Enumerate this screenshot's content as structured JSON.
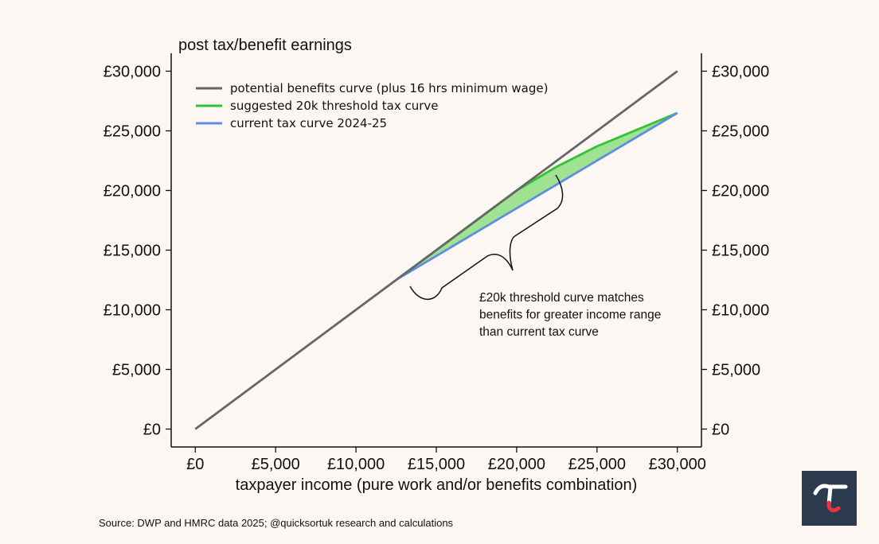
{
  "colors": {
    "background": "#fcf7f3",
    "benefits": "#666666",
    "suggested": "#33c233",
    "current": "#5f8ee0",
    "fill": "#99e08c",
    "logo_bg": "#2c3b4e",
    "logo_accent": "#e8343f"
  },
  "chart_data": {
    "type": "line",
    "title": "post tax/benefit earnings",
    "xlabel": "taxpayer income (pure work and/or benefits combination)",
    "ylabel": "",
    "xlim": [
      -1500,
      31500
    ],
    "ylim": [
      -1500,
      31500
    ],
    "xticks": [
      0,
      5000,
      10000,
      15000,
      20000,
      25000,
      30000
    ],
    "xtick_labels": [
      "£0",
      "£5,000",
      "£10,000",
      "£15,000",
      "£20,000",
      "£25,000",
      "£30,000"
    ],
    "yticks": [
      0,
      5000,
      10000,
      15000,
      20000,
      25000,
      30000
    ],
    "ytick_labels": [
      "£0",
      "£5,000",
      "£10,000",
      "£15,000",
      "£20,000",
      "£25,000",
      "£30,000"
    ],
    "secondary_y_axis": true,
    "grid": false,
    "legend_position": "top-left",
    "series": [
      {
        "name": "potential benefits curve (plus 16 hrs minimum wage)",
        "color": "#666666",
        "x": [
          0,
          30000
        ],
        "y": [
          0,
          30000
        ]
      },
      {
        "name": "suggested 20k threshold tax curve",
        "color": "#33c233",
        "x": [
          12570,
          20000,
          22500,
          25000,
          27500,
          30000
        ],
        "y": [
          12570,
          20000,
          22000,
          23700,
          25100,
          26500
        ]
      },
      {
        "name": "current tax curve 2024-25",
        "color": "#5f8ee0",
        "x": [
          12570,
          30000
        ],
        "y": [
          12570,
          26500
        ]
      }
    ],
    "fill_between": {
      "x": [
        12570,
        20000,
        22500,
        25000,
        27500,
        30000
      ],
      "upper": [
        12570,
        20000,
        22000,
        23700,
        25100,
        26500
      ],
      "lower": [
        12570,
        18509,
        20507,
        22505,
        24503,
        26500
      ],
      "color": "#99e08c"
    },
    "annotation": {
      "lines": [
        "£20k threshold curve matches",
        "benefits for greater income range",
        "than current tax curve"
      ]
    }
  },
  "source": "Source: DWP and HMRC data 2025; @quicksortuk research and calculations"
}
